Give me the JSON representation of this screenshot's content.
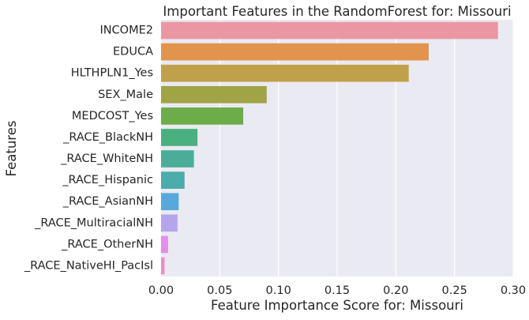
{
  "chart_data": {
    "type": "bar",
    "orientation": "horizontal",
    "title": "Important Features in the RandomForest for: Missouri",
    "xlabel": "Feature Importance Score for: Missouri",
    "ylabel": "Features",
    "xlim": [
      0,
      0.3
    ],
    "xticks": [
      0.0,
      0.05,
      0.1,
      0.15,
      0.2,
      0.25,
      0.3
    ],
    "xtick_labels": [
      "0.00",
      "0.05",
      "0.10",
      "0.15",
      "0.20",
      "0.25",
      "0.30"
    ],
    "grid": true,
    "categories": [
      "INCOME2",
      "EDUCA",
      "HLTHPLN1_Yes",
      "SEX_Male",
      "MEDCOST_Yes",
      "_RACE_BlackNH",
      "_RACE_WhiteNH",
      "_RACE_Hispanic",
      "_RACE_AsianNH",
      "_RACE_MultiracialNH",
      "_RACE_OtherNH",
      "_RACE_NativeHI_PacIsl"
    ],
    "values": [
      0.287,
      0.228,
      0.211,
      0.09,
      0.07,
      0.031,
      0.028,
      0.02,
      0.015,
      0.014,
      0.006,
      0.003
    ],
    "colors": [
      "#ea96a3",
      "#e2944f",
      "#c0a04a",
      "#a0a444",
      "#6cad49",
      "#4bb07f",
      "#4bad98",
      "#4cabab",
      "#58a9db",
      "#b5a5ea",
      "#e58ee8",
      "#e98fc8"
    ]
  }
}
